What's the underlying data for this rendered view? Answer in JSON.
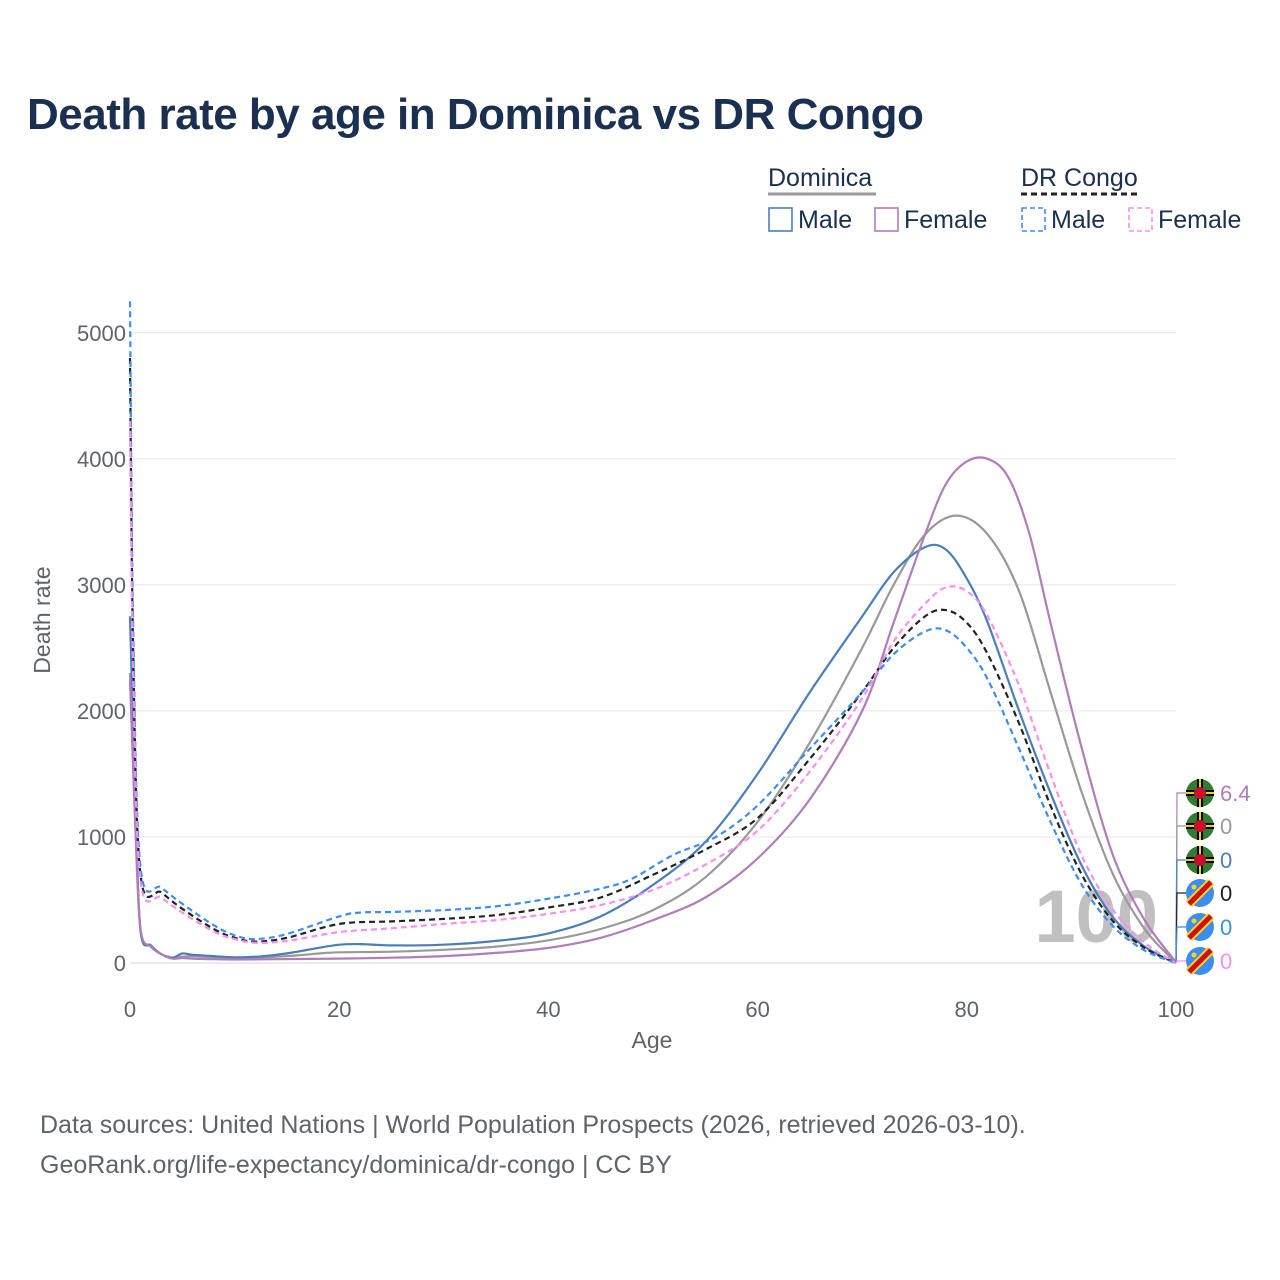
{
  "chart_data": {
    "type": "line",
    "title": "Death rate by age in Dominica vs DR Congo",
    "xlabel": "Age",
    "ylabel": "Death rate",
    "xlim": [
      0,
      100
    ],
    "ylim": [
      0,
      5300
    ],
    "xticks": [
      0,
      20,
      40,
      60,
      80,
      100
    ],
    "yticks": [
      0,
      1000,
      2000,
      3000,
      4000,
      5000
    ],
    "grid": true,
    "watermark": "100",
    "legend": {
      "placement": "top-right",
      "groups": [
        {
          "name": "Dominica",
          "color": "#999999",
          "dash": false,
          "items": [
            {
              "label": "Male",
              "color": "#4a7ebb",
              "dash": false
            },
            {
              "label": "Female",
              "color": "#b07cba",
              "dash": false
            }
          ]
        },
        {
          "name": "DR Congo",
          "color": "#222222",
          "dash": true,
          "items": [
            {
              "label": "Male",
              "color": "#3d8df0",
              "dash": true
            },
            {
              "label": "Female",
              "color": "#f78ef0",
              "dash": true
            }
          ]
        }
      ]
    },
    "series": [
      {
        "name": "Dominica Total",
        "color": "#999999",
        "dash": false,
        "end_label": "0",
        "points": [
          [
            0,
            2300
          ],
          [
            0.5,
            1200
          ],
          [
            1,
            260
          ],
          [
            2,
            130
          ],
          [
            3,
            70
          ],
          [
            4,
            45
          ],
          [
            5,
            50
          ],
          [
            6,
            55
          ],
          [
            8,
            45
          ],
          [
            10,
            40
          ],
          [
            12,
            42
          ],
          [
            14,
            50
          ],
          [
            16,
            60
          ],
          [
            18,
            75
          ],
          [
            20,
            85
          ],
          [
            25,
            90
          ],
          [
            30,
            105
          ],
          [
            35,
            130
          ],
          [
            40,
            180
          ],
          [
            45,
            270
          ],
          [
            50,
            420
          ],
          [
            55,
            680
          ],
          [
            60,
            1120
          ],
          [
            65,
            1750
          ],
          [
            70,
            2500
          ],
          [
            73,
            3000
          ],
          [
            76,
            3400
          ],
          [
            79,
            3550
          ],
          [
            82,
            3400
          ],
          [
            85,
            2950
          ],
          [
            88,
            2150
          ],
          [
            91,
            1350
          ],
          [
            94,
            700
          ],
          [
            97,
            270
          ],
          [
            100,
            0
          ]
        ]
      },
      {
        "name": "Dominica Male",
        "color": "#4a7ebb",
        "dash": false,
        "end_label": "0",
        "points": [
          [
            0,
            2750
          ],
          [
            0.5,
            1300
          ],
          [
            1,
            260
          ],
          [
            2,
            140
          ],
          [
            3,
            70
          ],
          [
            4,
            40
          ],
          [
            5,
            75
          ],
          [
            6,
            65
          ],
          [
            8,
            55
          ],
          [
            10,
            45
          ],
          [
            12,
            50
          ],
          [
            14,
            65
          ],
          [
            16,
            90
          ],
          [
            18,
            120
          ],
          [
            20,
            145
          ],
          [
            22,
            150
          ],
          [
            25,
            140
          ],
          [
            30,
            145
          ],
          [
            35,
            175
          ],
          [
            40,
            235
          ],
          [
            45,
            370
          ],
          [
            50,
            620
          ],
          [
            55,
            960
          ],
          [
            60,
            1500
          ],
          [
            65,
            2150
          ],
          [
            70,
            2750
          ],
          [
            73,
            3100
          ],
          [
            76,
            3300
          ],
          [
            78,
            3280
          ],
          [
            80,
            3050
          ],
          [
            82,
            2700
          ],
          [
            85,
            2000
          ],
          [
            88,
            1350
          ],
          [
            91,
            770
          ],
          [
            94,
            360
          ],
          [
            97,
            130
          ],
          [
            100,
            0
          ]
        ]
      },
      {
        "name": "Dominica Female",
        "color": "#b07cba",
        "dash": false,
        "end_label": "6.4",
        "points": [
          [
            0,
            2250
          ],
          [
            0.5,
            1100
          ],
          [
            1,
            270
          ],
          [
            2,
            130
          ],
          [
            3,
            70
          ],
          [
            4,
            35
          ],
          [
            5,
            40
          ],
          [
            6,
            35
          ],
          [
            8,
            30
          ],
          [
            10,
            28
          ],
          [
            14,
            30
          ],
          [
            20,
            35
          ],
          [
            25,
            42
          ],
          [
            30,
            55
          ],
          [
            35,
            80
          ],
          [
            40,
            120
          ],
          [
            45,
            200
          ],
          [
            50,
            340
          ],
          [
            55,
            520
          ],
          [
            60,
            830
          ],
          [
            65,
            1300
          ],
          [
            70,
            2000
          ],
          [
            73,
            2700
          ],
          [
            76,
            3400
          ],
          [
            78,
            3800
          ],
          [
            80,
            3980
          ],
          [
            82,
            4000
          ],
          [
            84,
            3850
          ],
          [
            86,
            3400
          ],
          [
            88,
            2700
          ],
          [
            91,
            1700
          ],
          [
            94,
            850
          ],
          [
            97,
            340
          ],
          [
            100,
            6.4
          ]
        ]
      },
      {
        "name": "DR Congo Total",
        "color": "#222222",
        "dash": true,
        "end_label": "0",
        "points": [
          [
            0,
            4800
          ],
          [
            0.3,
            2500
          ],
          [
            1,
            700
          ],
          [
            3,
            560
          ],
          [
            5,
            430
          ],
          [
            8,
            270
          ],
          [
            10,
            200
          ],
          [
            12,
            170
          ],
          [
            15,
            200
          ],
          [
            20,
            310
          ],
          [
            25,
            330
          ],
          [
            30,
            350
          ],
          [
            35,
            380
          ],
          [
            40,
            440
          ],
          [
            45,
            520
          ],
          [
            50,
            700
          ],
          [
            55,
            900
          ],
          [
            60,
            1150
          ],
          [
            65,
            1620
          ],
          [
            70,
            2150
          ],
          [
            73,
            2500
          ],
          [
            76,
            2750
          ],
          [
            78,
            2800
          ],
          [
            80,
            2700
          ],
          [
            82,
            2450
          ],
          [
            85,
            1900
          ],
          [
            88,
            1250
          ],
          [
            91,
            700
          ],
          [
            94,
            330
          ],
          [
            97,
            120
          ],
          [
            100,
            0
          ]
        ]
      },
      {
        "name": "DR Congo Male",
        "color": "#3d8df0",
        "dash": true,
        "end_label": "0",
        "points": [
          [
            0,
            5250
          ],
          [
            0.3,
            2700
          ],
          [
            1,
            760
          ],
          [
            3,
            600
          ],
          [
            5,
            470
          ],
          [
            8,
            300
          ],
          [
            10,
            220
          ],
          [
            12,
            190
          ],
          [
            15,
            230
          ],
          [
            20,
            370
          ],
          [
            22,
            400
          ],
          [
            25,
            405
          ],
          [
            30,
            420
          ],
          [
            35,
            450
          ],
          [
            40,
            510
          ],
          [
            45,
            590
          ],
          [
            48,
            670
          ],
          [
            52,
            860
          ],
          [
            56,
            1000
          ],
          [
            60,
            1250
          ],
          [
            65,
            1700
          ],
          [
            70,
            2150
          ],
          [
            73,
            2450
          ],
          [
            76,
            2630
          ],
          [
            78,
            2640
          ],
          [
            80,
            2500
          ],
          [
            82,
            2250
          ],
          [
            85,
            1700
          ],
          [
            88,
            1120
          ],
          [
            91,
            620
          ],
          [
            94,
            290
          ],
          [
            97,
            100
          ],
          [
            100,
            0
          ]
        ]
      },
      {
        "name": "DR Congo Female",
        "color": "#f78ef0",
        "dash": true,
        "end_label": "0",
        "points": [
          [
            0,
            4300
          ],
          [
            0.3,
            2300
          ],
          [
            1,
            650
          ],
          [
            3,
            520
          ],
          [
            5,
            400
          ],
          [
            8,
            250
          ],
          [
            10,
            190
          ],
          [
            12,
            160
          ],
          [
            15,
            175
          ],
          [
            20,
            245
          ],
          [
            25,
            275
          ],
          [
            30,
            310
          ],
          [
            35,
            340
          ],
          [
            40,
            390
          ],
          [
            45,
            460
          ],
          [
            50,
            580
          ],
          [
            55,
            780
          ],
          [
            60,
            1050
          ],
          [
            65,
            1520
          ],
          [
            70,
            2100
          ],
          [
            73,
            2550
          ],
          [
            76,
            2850
          ],
          [
            78,
            2980
          ],
          [
            80,
            2950
          ],
          [
            82,
            2750
          ],
          [
            85,
            2200
          ],
          [
            88,
            1500
          ],
          [
            91,
            850
          ],
          [
            94,
            420
          ],
          [
            97,
            160
          ],
          [
            100,
            0
          ]
        ]
      }
    ]
  },
  "footer": {
    "line1": "Data sources: United Nations | World Population Prospects (2026, retrieved 2026-03-10).",
    "line2": "GeoRank.org/life-expectancy/dominica/dr-congo | CC BY"
  }
}
